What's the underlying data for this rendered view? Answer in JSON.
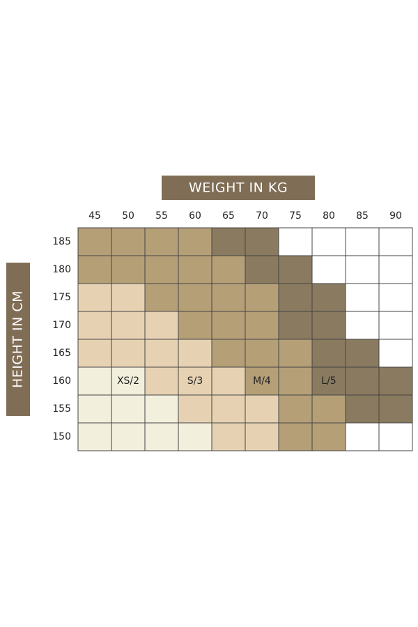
{
  "x_header": "WEIGHT IN KG",
  "y_header": "HEIGHT IN CM",
  "header_color": "#806d55",
  "columns": [
    "45",
    "50",
    "55",
    "60",
    "65",
    "70",
    "75",
    "80",
    "85",
    "90"
  ],
  "rows": [
    {
      "label": "185",
      "cells": [
        "#b59f77",
        "#b59f77",
        "#b59f77",
        "#b59f77",
        "#8a7a5f",
        "#8a7a5f",
        "#ffffff",
        "#ffffff",
        "#ffffff",
        "#ffffff"
      ]
    },
    {
      "label": "180",
      "cells": [
        "#b59f77",
        "#b59f77",
        "#b59f77",
        "#b59f77",
        "#b59f77",
        "#8a7a5f",
        "#8a7a5f",
        "#ffffff",
        "#ffffff",
        "#ffffff"
      ]
    },
    {
      "label": "175",
      "cells": [
        "#e6d2b3",
        "#e6d2b3",
        "#b59f77",
        "#b59f77",
        "#b59f77",
        "#b59f77",
        "#8a7a5f",
        "#8a7a5f",
        "#ffffff",
        "#ffffff"
      ]
    },
    {
      "label": "170",
      "cells": [
        "#e6d2b3",
        "#e6d2b3",
        "#e6d2b3",
        "#b59f77",
        "#b59f77",
        "#b59f77",
        "#8a7a5f",
        "#8a7a5f",
        "#ffffff",
        "#ffffff"
      ]
    },
    {
      "label": "165",
      "cells": [
        "#e6d2b3",
        "#e6d2b3",
        "#e6d2b3",
        "#e6d2b3",
        "#b59f77",
        "#b59f77",
        "#b59f77",
        "#8a7a5f",
        "#8a7a5f",
        "#ffffff"
      ]
    },
    {
      "label": "160",
      "cells": [
        "#f2f0dd",
        {
          "color": "#f2f0dd",
          "label": "XS/2"
        },
        "#e6d2b3",
        {
          "color": "#e6d2b3",
          "label": "S/3"
        },
        "#e6d2b3",
        {
          "color": "#b59f77",
          "label": "M/4"
        },
        "#b59f77",
        {
          "color": "#8a7a5f",
          "label": "L/5"
        },
        "#8a7a5f",
        "#8a7a5f"
      ]
    },
    {
      "label": "155",
      "cells": [
        "#f2f0dd",
        "#f2f0dd",
        "#f2f0dd",
        "#e6d2b3",
        "#e6d2b3",
        "#e6d2b3",
        "#b59f77",
        "#b59f77",
        "#8a7a5f",
        "#8a7a5f"
      ]
    },
    {
      "label": "150",
      "cells": [
        "#f2f0dd",
        "#f2f0dd",
        "#f2f0dd",
        "#f2f0dd",
        "#e6d2b3",
        "#e6d2b3",
        "#b59f77",
        "#b59f77",
        "#ffffff",
        "#ffffff"
      ]
    }
  ]
}
